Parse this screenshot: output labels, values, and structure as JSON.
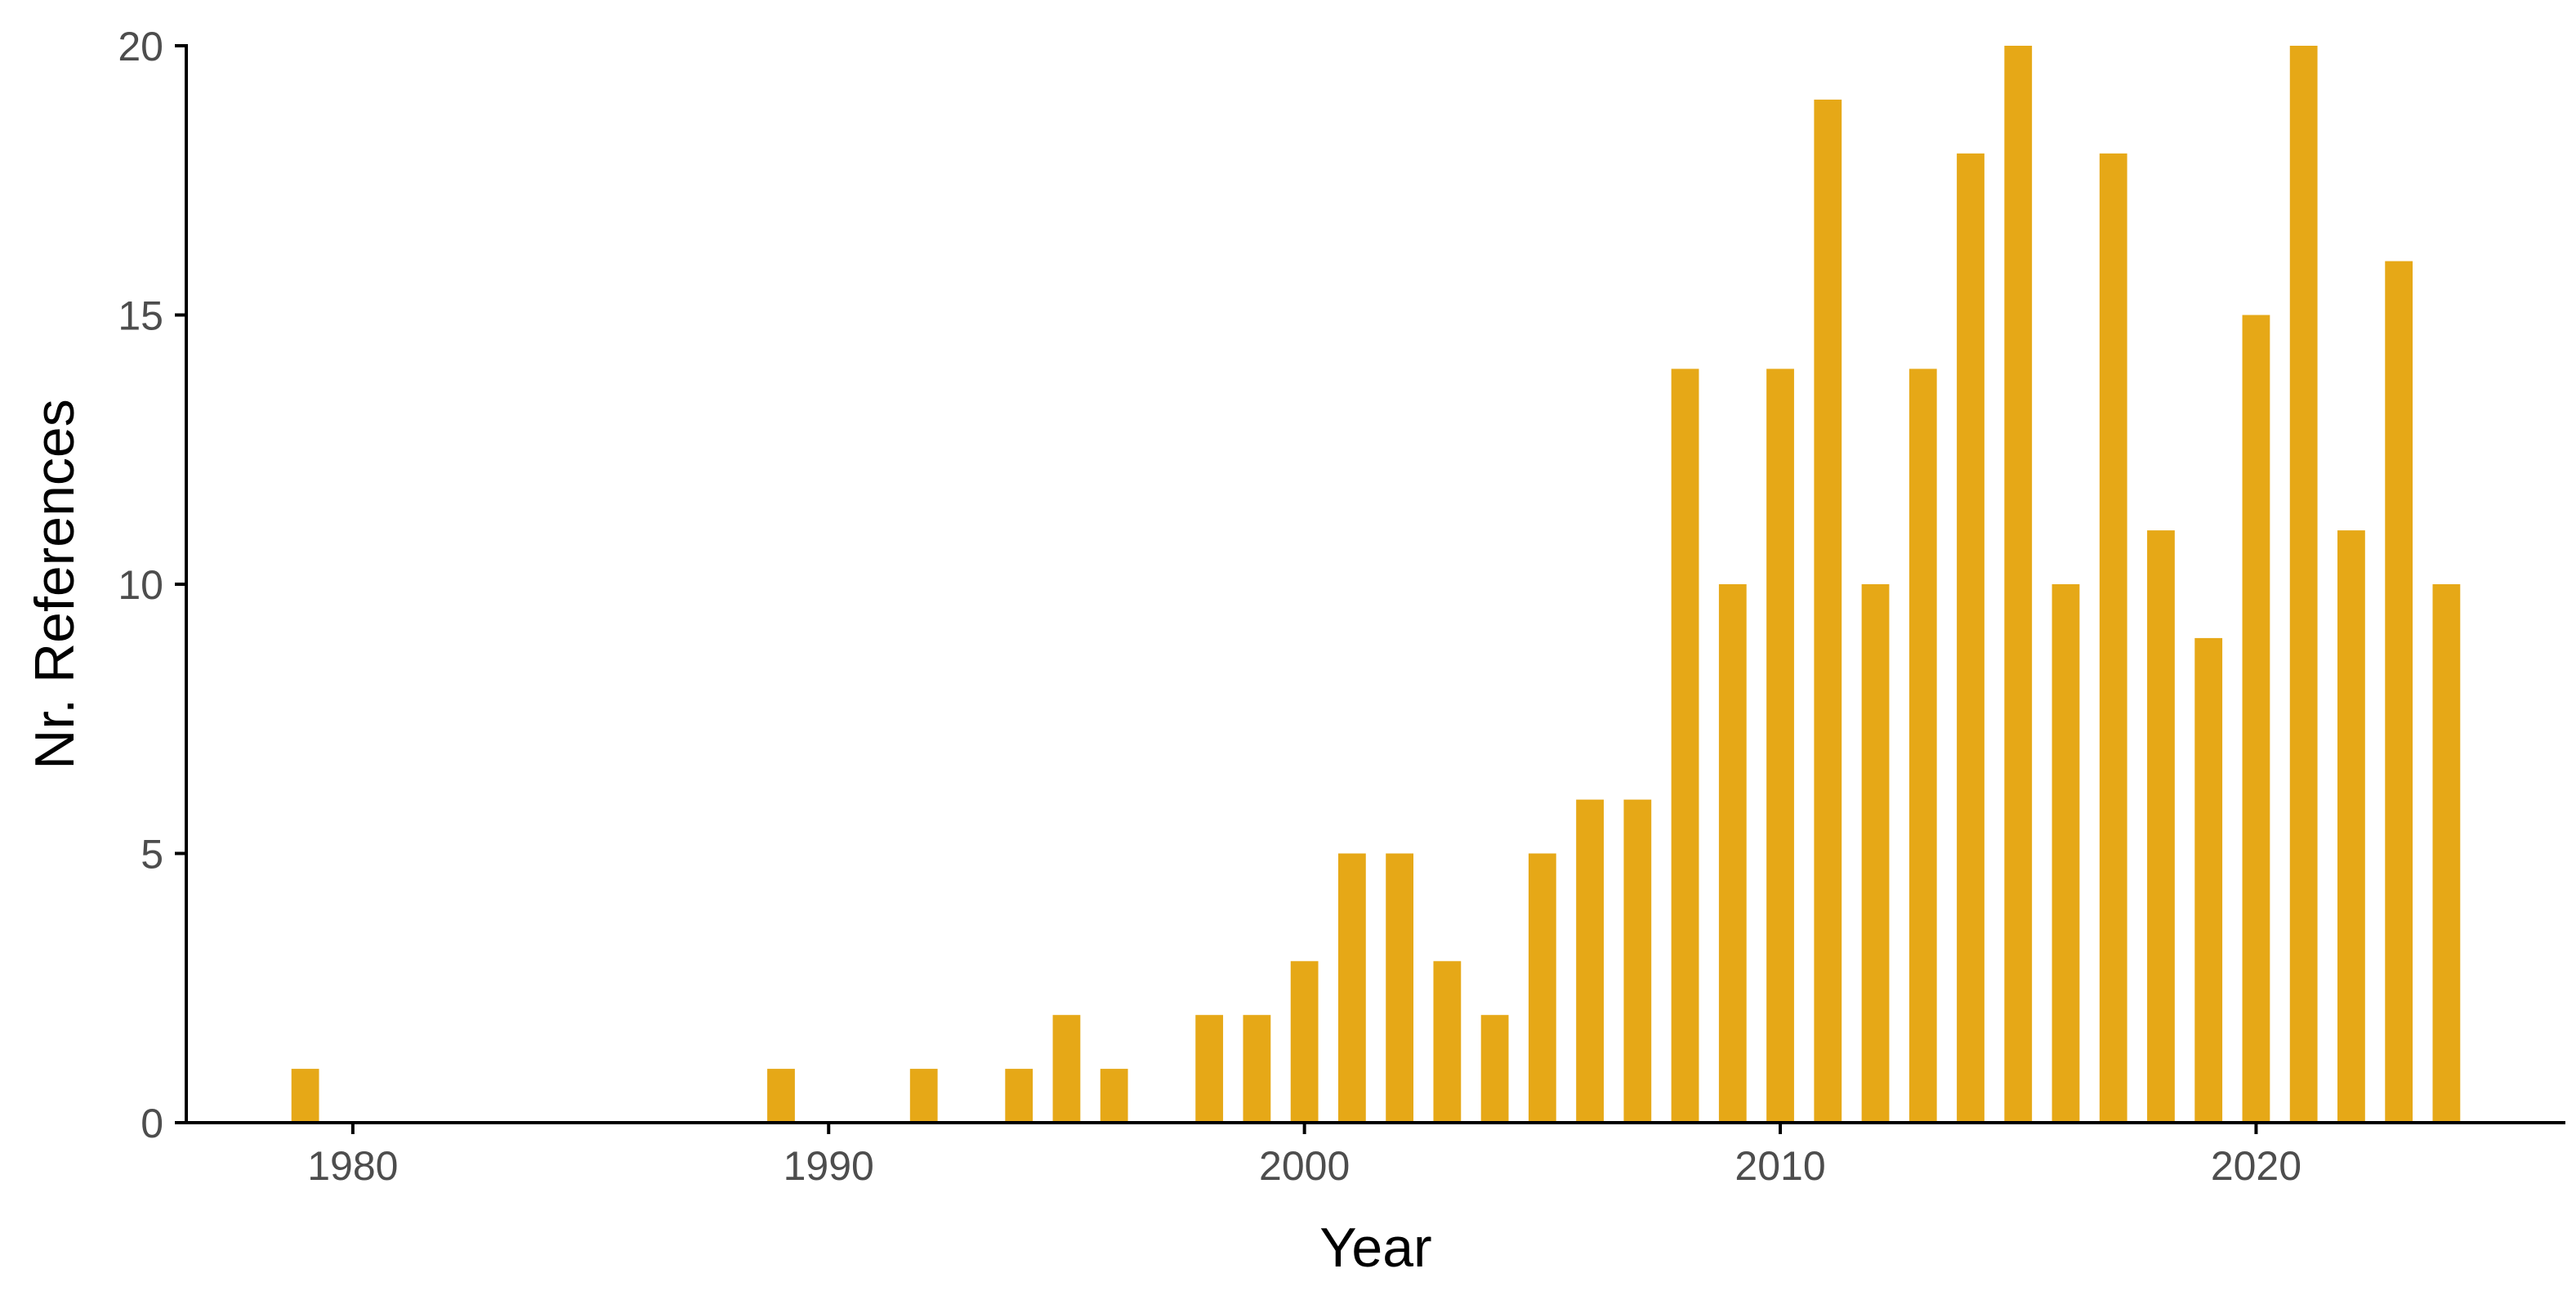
{
  "chart_data": {
    "type": "bar",
    "title": "",
    "xlabel": "Year",
    "ylabel": "Nr. References",
    "xlim": [
      1976.5,
      2026.5
    ],
    "ylim": [
      0,
      20
    ],
    "grid": false,
    "legend": "none",
    "colors": {
      "bar": "#E6A817",
      "axis": "#000000",
      "tick_label": "#4d4d4d",
      "background": "#ffffff"
    },
    "x_ticks": [
      1980,
      1990,
      2000,
      2010,
      2020
    ],
    "y_ticks": [
      0,
      5,
      10,
      15,
      20
    ],
    "x_tick_labels": [
      "1980",
      "1990",
      "2000",
      "2010",
      "2020"
    ],
    "y_tick_labels": [
      "0",
      "5",
      "10",
      "15",
      "20"
    ],
    "x": [
      1979,
      1989,
      1992,
      1994,
      1995,
      1996,
      1998,
      1999,
      2000,
      2001,
      2002,
      2003,
      2004,
      2005,
      2006,
      2007,
      2008,
      2009,
      2010,
      2011,
      2012,
      2013,
      2014,
      2015,
      2016,
      2017,
      2018,
      2019,
      2020,
      2021,
      2022,
      2023,
      2024
    ],
    "values": [
      1,
      1,
      1,
      1,
      2,
      1,
      2,
      2,
      3,
      5,
      5,
      3,
      2,
      5,
      6,
      6,
      14,
      10,
      14,
      19,
      10,
      14,
      18,
      20,
      10,
      18,
      11,
      9,
      15,
      20,
      11,
      16,
      10
    ]
  }
}
